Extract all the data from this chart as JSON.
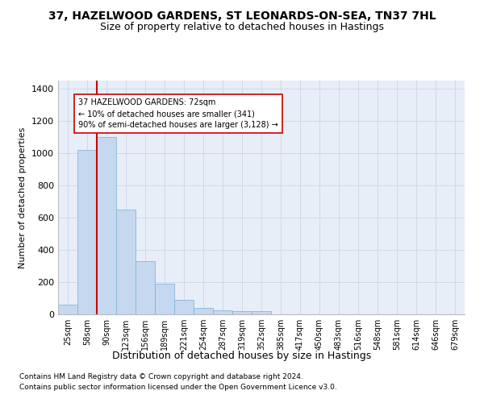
{
  "title_line1": "37, HAZELWOOD GARDENS, ST LEONARDS-ON-SEA, TN37 7HL",
  "title_line2": "Size of property relative to detached houses in Hastings",
  "xlabel": "Distribution of detached houses by size in Hastings",
  "ylabel": "Number of detached properties",
  "footnote1": "Contains HM Land Registry data © Crown copyright and database right 2024.",
  "footnote2": "Contains public sector information licensed under the Open Government Licence v3.0.",
  "bar_labels": [
    "25sqm",
    "58sqm",
    "90sqm",
    "123sqm",
    "156sqm",
    "189sqm",
    "221sqm",
    "254sqm",
    "287sqm",
    "319sqm",
    "352sqm",
    "385sqm",
    "417sqm",
    "450sqm",
    "483sqm",
    "516sqm",
    "548sqm",
    "581sqm",
    "614sqm",
    "646sqm",
    "679sqm"
  ],
  "bar_values": [
    60,
    1020,
    1100,
    650,
    330,
    190,
    90,
    40,
    25,
    22,
    20,
    0,
    0,
    0,
    0,
    0,
    0,
    0,
    0,
    0,
    0
  ],
  "bar_color": "#c5d8f0",
  "bar_edge_color": "#7aaed4",
  "vline_x": 1.5,
  "vline_color": "#cc0000",
  "annotation_text": "37 HAZELWOOD GARDENS: 72sqm\n← 10% of detached houses are smaller (341)\n90% of semi-detached houses are larger (3,128) →",
  "annotation_box_color": "#ffffff",
  "annotation_box_edge": "#cc0000",
  "ylim": [
    0,
    1450
  ],
  "yticks": [
    0,
    200,
    400,
    600,
    800,
    1000,
    1200,
    1400
  ],
  "grid_color": "#d0d8e8",
  "background_color": "#e8eef8",
  "title_fontsize": 10,
  "subtitle_fontsize": 9
}
